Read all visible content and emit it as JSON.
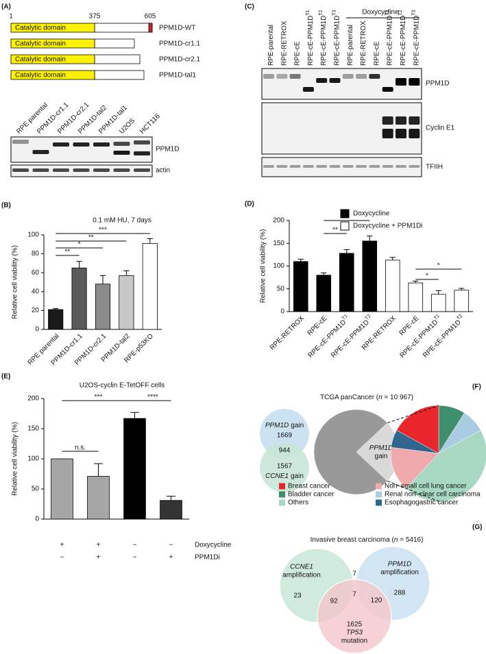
{
  "panel_a": {
    "label": "(A)",
    "domain_positions": [
      1,
      375,
      605
    ],
    "constructs": [
      {
        "domain": "Catalytic domain",
        "name": "PPM1D-WT"
      },
      {
        "domain": "Catalytic domain",
        "name": "PPM1D-cr1.1"
      },
      {
        "domain": "Catalytic domain",
        "name": "PPM1D-cr2.1"
      },
      {
        "domain": "Catalytic domain",
        "name": "PPM1D-tal1"
      }
    ],
    "blot_lanes": [
      "RPE parental",
      "PPM1D-cr1.1",
      "PPM1D-cr2.1",
      "PPM1D-tal2",
      "PPM1D-tal1",
      "U2OS",
      "HCT116"
    ],
    "blot_bands": [
      "PPM1D",
      "actin"
    ]
  },
  "panel_c": {
    "label": "(C)",
    "header": "Doxycycline",
    "lanes": [
      "RPE-parental",
      "RPE-RETROX",
      "RPE-cE",
      "RPE-cE-PPM1D",
      "RPE-cE-PPM1D",
      "RPE-cE-PPM1D",
      "RPE-parental",
      "RPE-RETROX",
      "RPE-cE",
      "RPE-cE-PPM1D",
      "RPE-cE-PPM1D",
      "RPE-cE-PPM1D"
    ],
    "lane_superscripts": [
      null,
      null,
      null,
      "T1",
      "T2",
      "T3",
      null,
      null,
      null,
      "T1",
      "T2",
      "T3"
    ],
    "blot_bands": [
      "PPM1D",
      "Cyclin E1",
      "TFIIH"
    ]
  },
  "chart_data": [
    {
      "type": "bar",
      "panel_label": "(B)",
      "title": "0.1 mM HU, 7 days",
      "y_label": "Relative cell viability (%)",
      "categories": [
        "RPE parental",
        "PPM1D-cr1.1",
        "PPM1D-cr2.1",
        "PPM1D-tal2",
        "RPE-p53KO"
      ],
      "values": [
        21,
        65,
        48,
        57,
        91
      ],
      "errors": [
        1,
        7,
        9,
        5,
        5
      ],
      "colors": [
        "#1a1a1a",
        "#5a5a5a",
        "#8c8c8c",
        "#c8c8c8",
        "#ffffff"
      ],
      "ylim": [
        0,
        100
      ],
      "yticks": [
        0,
        20,
        40,
        60,
        80,
        100
      ],
      "annotations": [
        "***",
        "**",
        "*",
        "**"
      ]
    },
    {
      "type": "bar",
      "panel_label": "(D)",
      "y_label": "Relative cell viability (%)",
      "categories": [
        "RPE-RETROX",
        "RPE-cE",
        "RPE-cE-PPM1D",
        "RPE-cE-PPM1D",
        "RPE-RETROX",
        "RPE-cE",
        "RPE-cE-PPM1D",
        "RPE-cE-PPM1D"
      ],
      "category_superscripts": [
        null,
        null,
        "T1",
        "T2",
        null,
        null,
        "T1",
        "T2"
      ],
      "series": [
        {
          "name": "Doxycycline",
          "color": "#000000",
          "values": [
            110,
            80,
            128,
            155,
            null,
            null,
            null,
            null
          ],
          "errors": [
            5,
            5,
            8,
            11,
            null,
            null,
            null,
            null
          ]
        },
        {
          "name": "Doxycycline + PPM1Di",
          "color": "#ffffff",
          "values": [
            null,
            null,
            null,
            null,
            113,
            63,
            38,
            47
          ],
          "errors": [
            null,
            null,
            null,
            null,
            6,
            4,
            8,
            4
          ]
        }
      ],
      "ylim": [
        0,
        200
      ],
      "yticks": [
        0,
        50,
        100,
        150,
        200
      ],
      "annotations": [
        "**",
        "**",
        "*",
        "*"
      ]
    },
    {
      "type": "bar",
      "panel_label": "(E)",
      "title": "U2OS-cyclin E-TetOFF cells",
      "y_label": "Relative cell viability (%)",
      "values": [
        100,
        71,
        167,
        31
      ],
      "errors": [
        0,
        21,
        10,
        7
      ],
      "colors": [
        "#a6a6a6",
        "#a6a6a6",
        "#000000",
        "#333333"
      ],
      "ylim": [
        0,
        200
      ],
      "yticks": [
        0,
        50,
        100,
        150,
        200
      ],
      "annotations": [
        "n.s.",
        "***",
        "****"
      ],
      "conditions": [
        {
          "name": "Doxycycline",
          "values": [
            "+",
            "+",
            "−",
            "−"
          ]
        },
        {
          "name": "PPM1Di",
          "values": [
            "−",
            "+",
            "−",
            "+"
          ]
        }
      ]
    },
    {
      "type": "pie",
      "values": [
        76,
        24
      ],
      "colors": [
        "#999999",
        "#d9d9d9"
      ],
      "slice_labels": [
        null,
        {
          "gene": "PPM1D",
          "text": "gain"
        }
      ]
    },
    {
      "type": "pie",
      "categories": [
        "Breast cancer",
        "Bladder cancer",
        "Others",
        "Non–small cell lung cancer",
        "Renal non–clear cell carcinoma",
        "Esophagogastric cancer"
      ],
      "values": [
        17,
        9,
        45,
        15,
        8,
        6
      ],
      "colors": [
        "#e8262b",
        "#3f8f6e",
        "#a8d8c2",
        "#f0a9ad",
        "#a9cce3",
        "#2e6690"
      ],
      "legend": true
    }
  ],
  "panel_f": {
    "label": "(F)",
    "title": {
      "text": "TCGA panCancer (",
      "italic": "n",
      "suffix": " = 10 967)"
    },
    "venn": {
      "a": {
        "gene": "PPM1D",
        "text": "gain",
        "count": 1669
      },
      "overlap": 944,
      "b": {
        "gene": "CCNE1",
        "text": "gain",
        "count": 1567
      }
    }
  },
  "panel_g": {
    "label": "(G)",
    "title": {
      "text": "Invasive breast carcinoma (",
      "italic": "n",
      "suffix": " = 5416)"
    },
    "sets": [
      {
        "gene": "CCNE1",
        "text": "amplification",
        "only": 23
      },
      {
        "gene": "PPM1D",
        "text": "amplification",
        "only": 288
      },
      {
        "gene": "TP53",
        "text": "mutation",
        "only": 1625
      }
    ],
    "overlaps": {
      "ccne1_ppm1d": 7,
      "all": 7,
      "ccne1_tp53": 92,
      "ppm1d_tp53": 120
    }
  }
}
